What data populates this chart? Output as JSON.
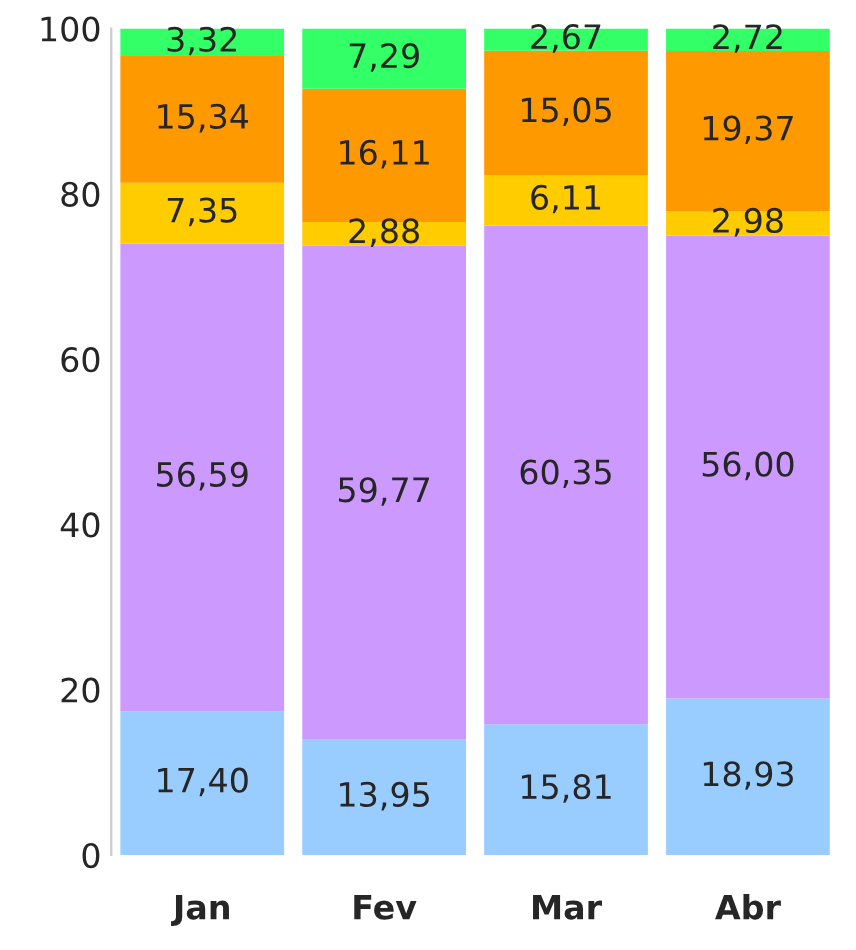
{
  "chart_data": {
    "type": "bar",
    "stacked": true,
    "categories": [
      "Jan",
      "Fev",
      "Mar",
      "Abr"
    ],
    "series": [
      {
        "color": "#99ccff",
        "values": [
          17.4,
          13.95,
          15.81,
          18.93
        ],
        "value_labels": [
          "17,40",
          "13,95",
          "15,81",
          "18,93"
        ]
      },
      {
        "color": "#cc99ff",
        "values": [
          56.59,
          59.77,
          60.35,
          56.0
        ],
        "value_labels": [
          "56,59",
          "59,77",
          "60,35",
          "56,00"
        ]
      },
      {
        "color": "#ffcc00",
        "values": [
          7.35,
          2.88,
          6.11,
          2.98
        ],
        "value_labels": [
          "7,35",
          "2,88",
          "6,11",
          "2,98"
        ]
      },
      {
        "color": "#ff9900",
        "values": [
          15.34,
          16.11,
          15.05,
          19.37
        ],
        "value_labels": [
          "15,34",
          "16,11",
          "15,05",
          "19,37"
        ]
      },
      {
        "color": "#33ff66",
        "values": [
          3.32,
          7.29,
          2.67,
          2.72
        ],
        "value_labels": [
          "3,32",
          "7,29",
          "2,67",
          "2,72"
        ]
      }
    ],
    "ylim": [
      0,
      100
    ],
    "yticks": [
      0,
      20,
      40,
      60,
      80,
      100
    ],
    "grid": false
  }
}
